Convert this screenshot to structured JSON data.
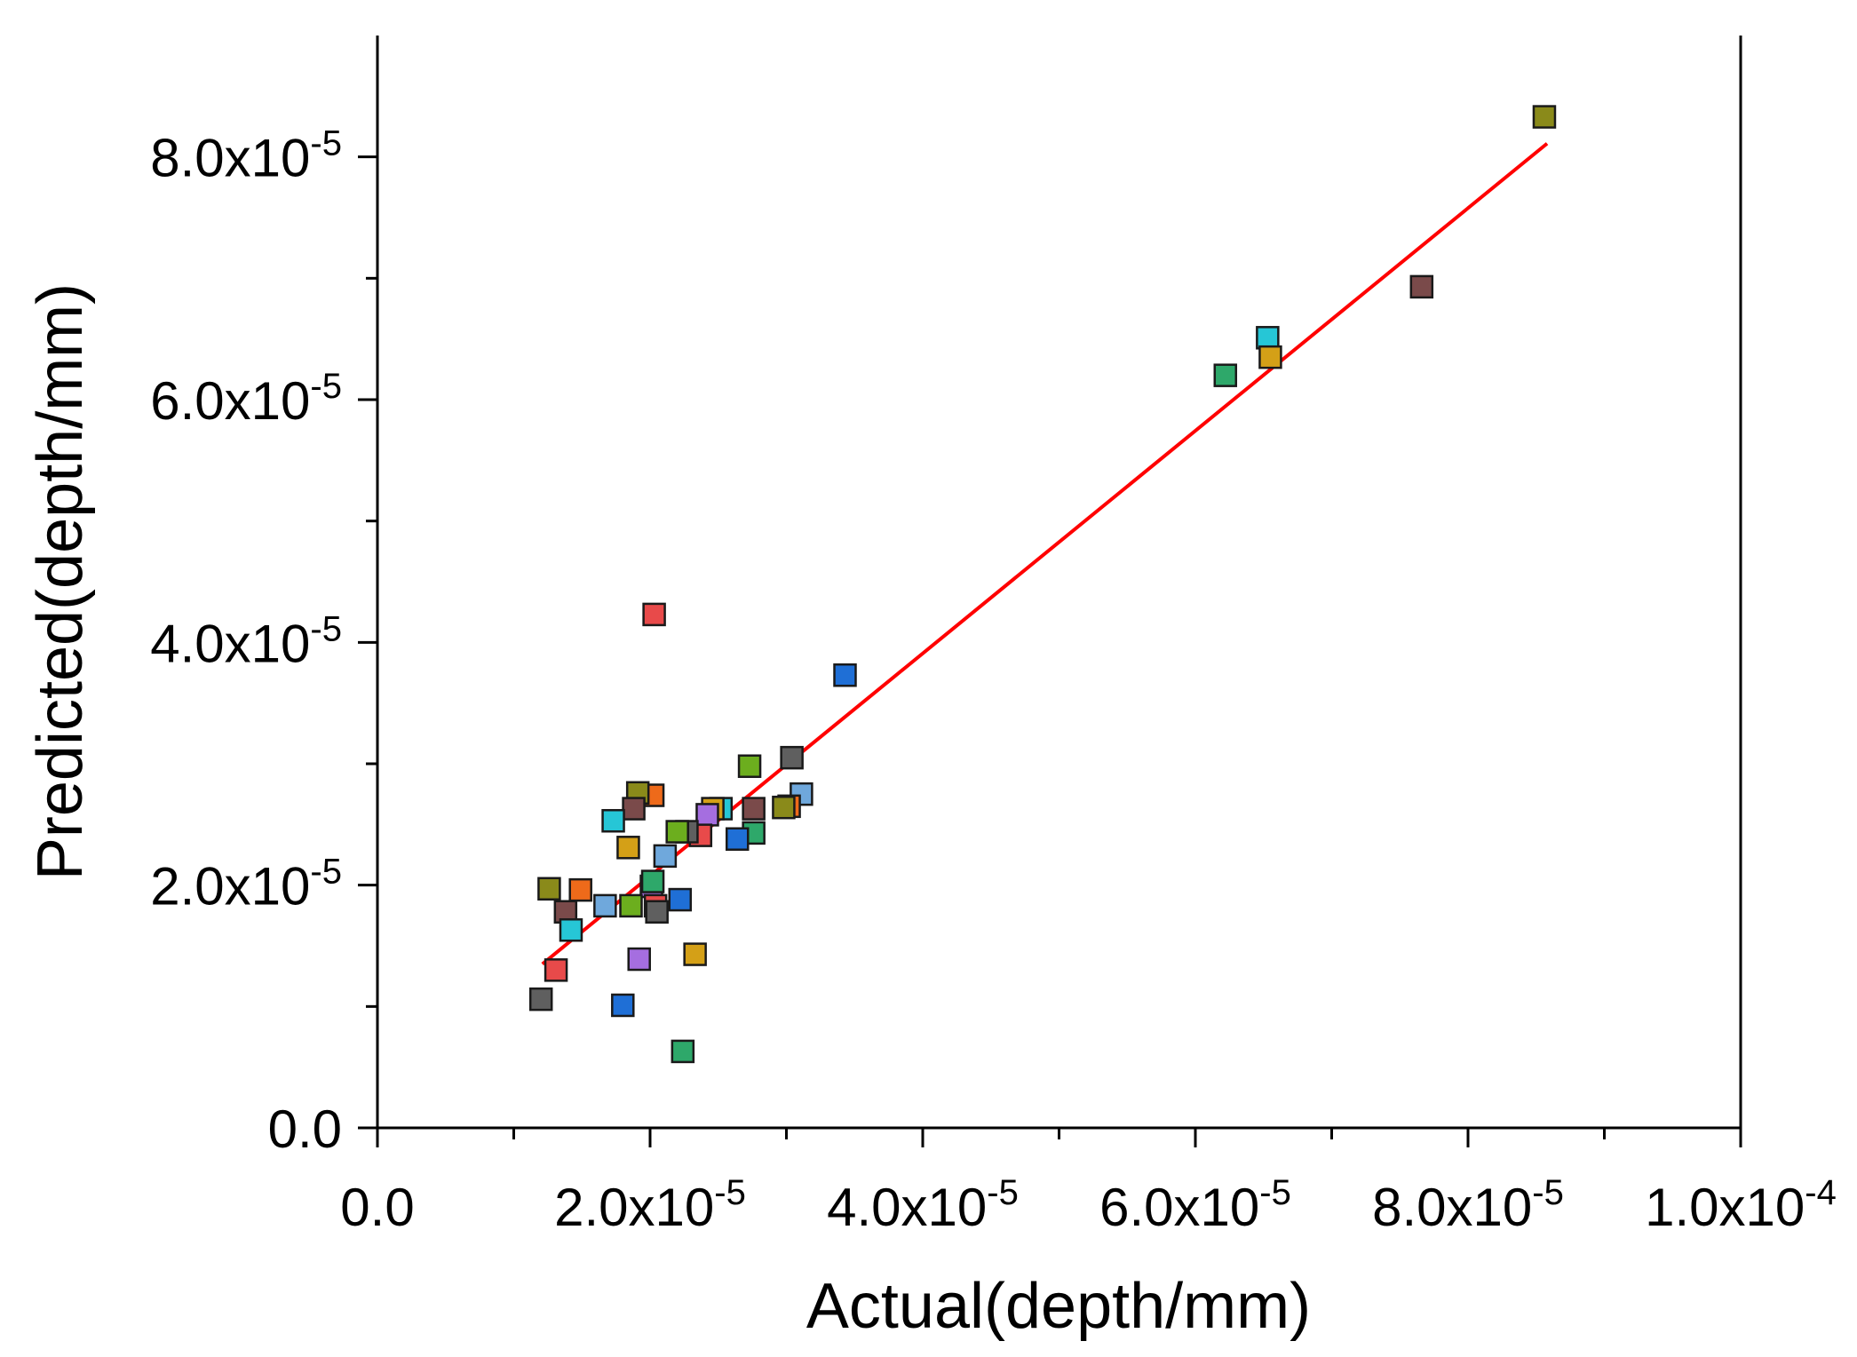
{
  "chart_data": {
    "type": "scatter",
    "title": "",
    "xlabel": "Actual(depth/mm)",
    "ylabel": "Predicted(depth/mm)",
    "xlim": [
      0,
      0.0001
    ],
    "ylim": [
      0,
      9e-05
    ],
    "x_major_ticks": [
      {
        "value": 0,
        "mantissa": "0.0",
        "exp": ""
      },
      {
        "value": 2e-05,
        "mantissa": "2.0x10",
        "exp": "-5"
      },
      {
        "value": 4e-05,
        "mantissa": "4.0x10",
        "exp": "-5"
      },
      {
        "value": 6e-05,
        "mantissa": "6.0x10",
        "exp": "-5"
      },
      {
        "value": 8e-05,
        "mantissa": "8.0x10",
        "exp": "-5"
      },
      {
        "value": 0.0001,
        "mantissa": "1.0x10",
        "exp": "-4"
      }
    ],
    "x_minor_ticks": [
      1e-05,
      3e-05,
      5e-05,
      7e-05,
      9e-05
    ],
    "y_major_ticks": [
      {
        "value": 0,
        "mantissa": "0.0",
        "exp": ""
      },
      {
        "value": 2e-05,
        "mantissa": "2.0x10",
        "exp": "-5"
      },
      {
        "value": 4e-05,
        "mantissa": "4.0x10",
        "exp": "-5"
      },
      {
        "value": 6e-05,
        "mantissa": "6.0x10",
        "exp": "-5"
      },
      {
        "value": 8e-05,
        "mantissa": "8.0x10",
        "exp": "-5"
      }
    ],
    "y_minor_ticks": [
      1e-05,
      3e-05,
      5e-05,
      7e-05
    ],
    "fit_line": {
      "color": "#ff0000",
      "x": [
        1.21e-05,
        8.58e-05
      ],
      "y": [
        1.35e-05,
        8.11e-05
      ]
    },
    "points": [
      {
        "x": 8.56e-05,
        "y": 8.33e-05,
        "color": "#8a8a1a"
      },
      {
        "x": 7.66e-05,
        "y": 6.93e-05,
        "color": "#7a4a4a"
      },
      {
        "x": 6.53e-05,
        "y": 6.51e-05,
        "color": "#26c6d6"
      },
      {
        "x": 6.55e-05,
        "y": 6.35e-05,
        "color": "#d4a017"
      },
      {
        "x": 6.22e-05,
        "y": 6.2e-05,
        "color": "#2ea86a"
      },
      {
        "x": 3.43e-05,
        "y": 3.73e-05,
        "color": "#1f6fd6"
      },
      {
        "x": 2.03e-05,
        "y": 4.23e-05,
        "color": "#e84a4a"
      },
      {
        "x": 3.04e-05,
        "y": 3.05e-05,
        "color": "#5f5f5f"
      },
      {
        "x": 2.73e-05,
        "y": 2.98e-05,
        "color": "#6cae1e"
      },
      {
        "x": 3.11e-05,
        "y": 2.75e-05,
        "color": "#6fa8dc"
      },
      {
        "x": 3.02e-05,
        "y": 2.65e-05,
        "color": "#ee6a1a"
      },
      {
        "x": 2.98e-05,
        "y": 2.64e-05,
        "color": "#8a8a1a"
      },
      {
        "x": 2.76e-05,
        "y": 2.63e-05,
        "color": "#7a4a4a"
      },
      {
        "x": 2.52e-05,
        "y": 2.63e-05,
        "color": "#26c6d6"
      },
      {
        "x": 2.46e-05,
        "y": 2.63e-05,
        "color": "#d4a017"
      },
      {
        "x": 2.42e-05,
        "y": 2.58e-05,
        "color": "#a56ee0"
      },
      {
        "x": 2.76e-05,
        "y": 2.43e-05,
        "color": "#2ea86a"
      },
      {
        "x": 2.64e-05,
        "y": 2.38e-05,
        "color": "#1f6fd6"
      },
      {
        "x": 2.37e-05,
        "y": 2.41e-05,
        "color": "#e84a4a"
      },
      {
        "x": 2.27e-05,
        "y": 2.44e-05,
        "color": "#5f5f5f"
      },
      {
        "x": 2.2e-05,
        "y": 2.44e-05,
        "color": "#6cae1e"
      },
      {
        "x": 2.11e-05,
        "y": 2.24e-05,
        "color": "#6fa8dc"
      },
      {
        "x": 2.02e-05,
        "y": 2.74e-05,
        "color": "#ee6a1a"
      },
      {
        "x": 1.91e-05,
        "y": 2.76e-05,
        "color": "#8a8a1a"
      },
      {
        "x": 1.88e-05,
        "y": 2.63e-05,
        "color": "#7a4a4a"
      },
      {
        "x": 1.73e-05,
        "y": 2.53e-05,
        "color": "#26c6d6"
      },
      {
        "x": 1.84e-05,
        "y": 2.31e-05,
        "color": "#d4a017"
      },
      {
        "x": 2.01e-05,
        "y": 1.99e-05,
        "color": "#a56ee0"
      },
      {
        "x": 2.02e-05,
        "y": 2.03e-05,
        "color": "#2ea86a"
      },
      {
        "x": 2.22e-05,
        "y": 1.88e-05,
        "color": "#1f6fd6"
      },
      {
        "x": 2.04e-05,
        "y": 1.83e-05,
        "color": "#e84a4a"
      },
      {
        "x": 2.05e-05,
        "y": 1.78e-05,
        "color": "#5f5f5f"
      },
      {
        "x": 1.86e-05,
        "y": 1.83e-05,
        "color": "#6cae1e"
      },
      {
        "x": 1.67e-05,
        "y": 1.83e-05,
        "color": "#6fa8dc"
      },
      {
        "x": 1.49e-05,
        "y": 1.96e-05,
        "color": "#ee6a1a"
      },
      {
        "x": 1.26e-05,
        "y": 1.97e-05,
        "color": "#8a8a1a"
      },
      {
        "x": 1.38e-05,
        "y": 1.78e-05,
        "color": "#7a4a4a"
      },
      {
        "x": 1.42e-05,
        "y": 1.63e-05,
        "color": "#26c6d6"
      },
      {
        "x": 2.33e-05,
        "y": 1.43e-05,
        "color": "#d4a017"
      },
      {
        "x": 1.92e-05,
        "y": 1.39e-05,
        "color": "#a56ee0"
      },
      {
        "x": 2.24e-05,
        "y": 6.3e-06,
        "color": "#2ea86a"
      },
      {
        "x": 1.8e-05,
        "y": 1.01e-05,
        "color": "#1f6fd6"
      },
      {
        "x": 1.31e-05,
        "y": 1.3e-05,
        "color": "#e84a4a"
      },
      {
        "x": 1.2e-05,
        "y": 1.06e-05,
        "color": "#5f5f5f"
      }
    ]
  }
}
